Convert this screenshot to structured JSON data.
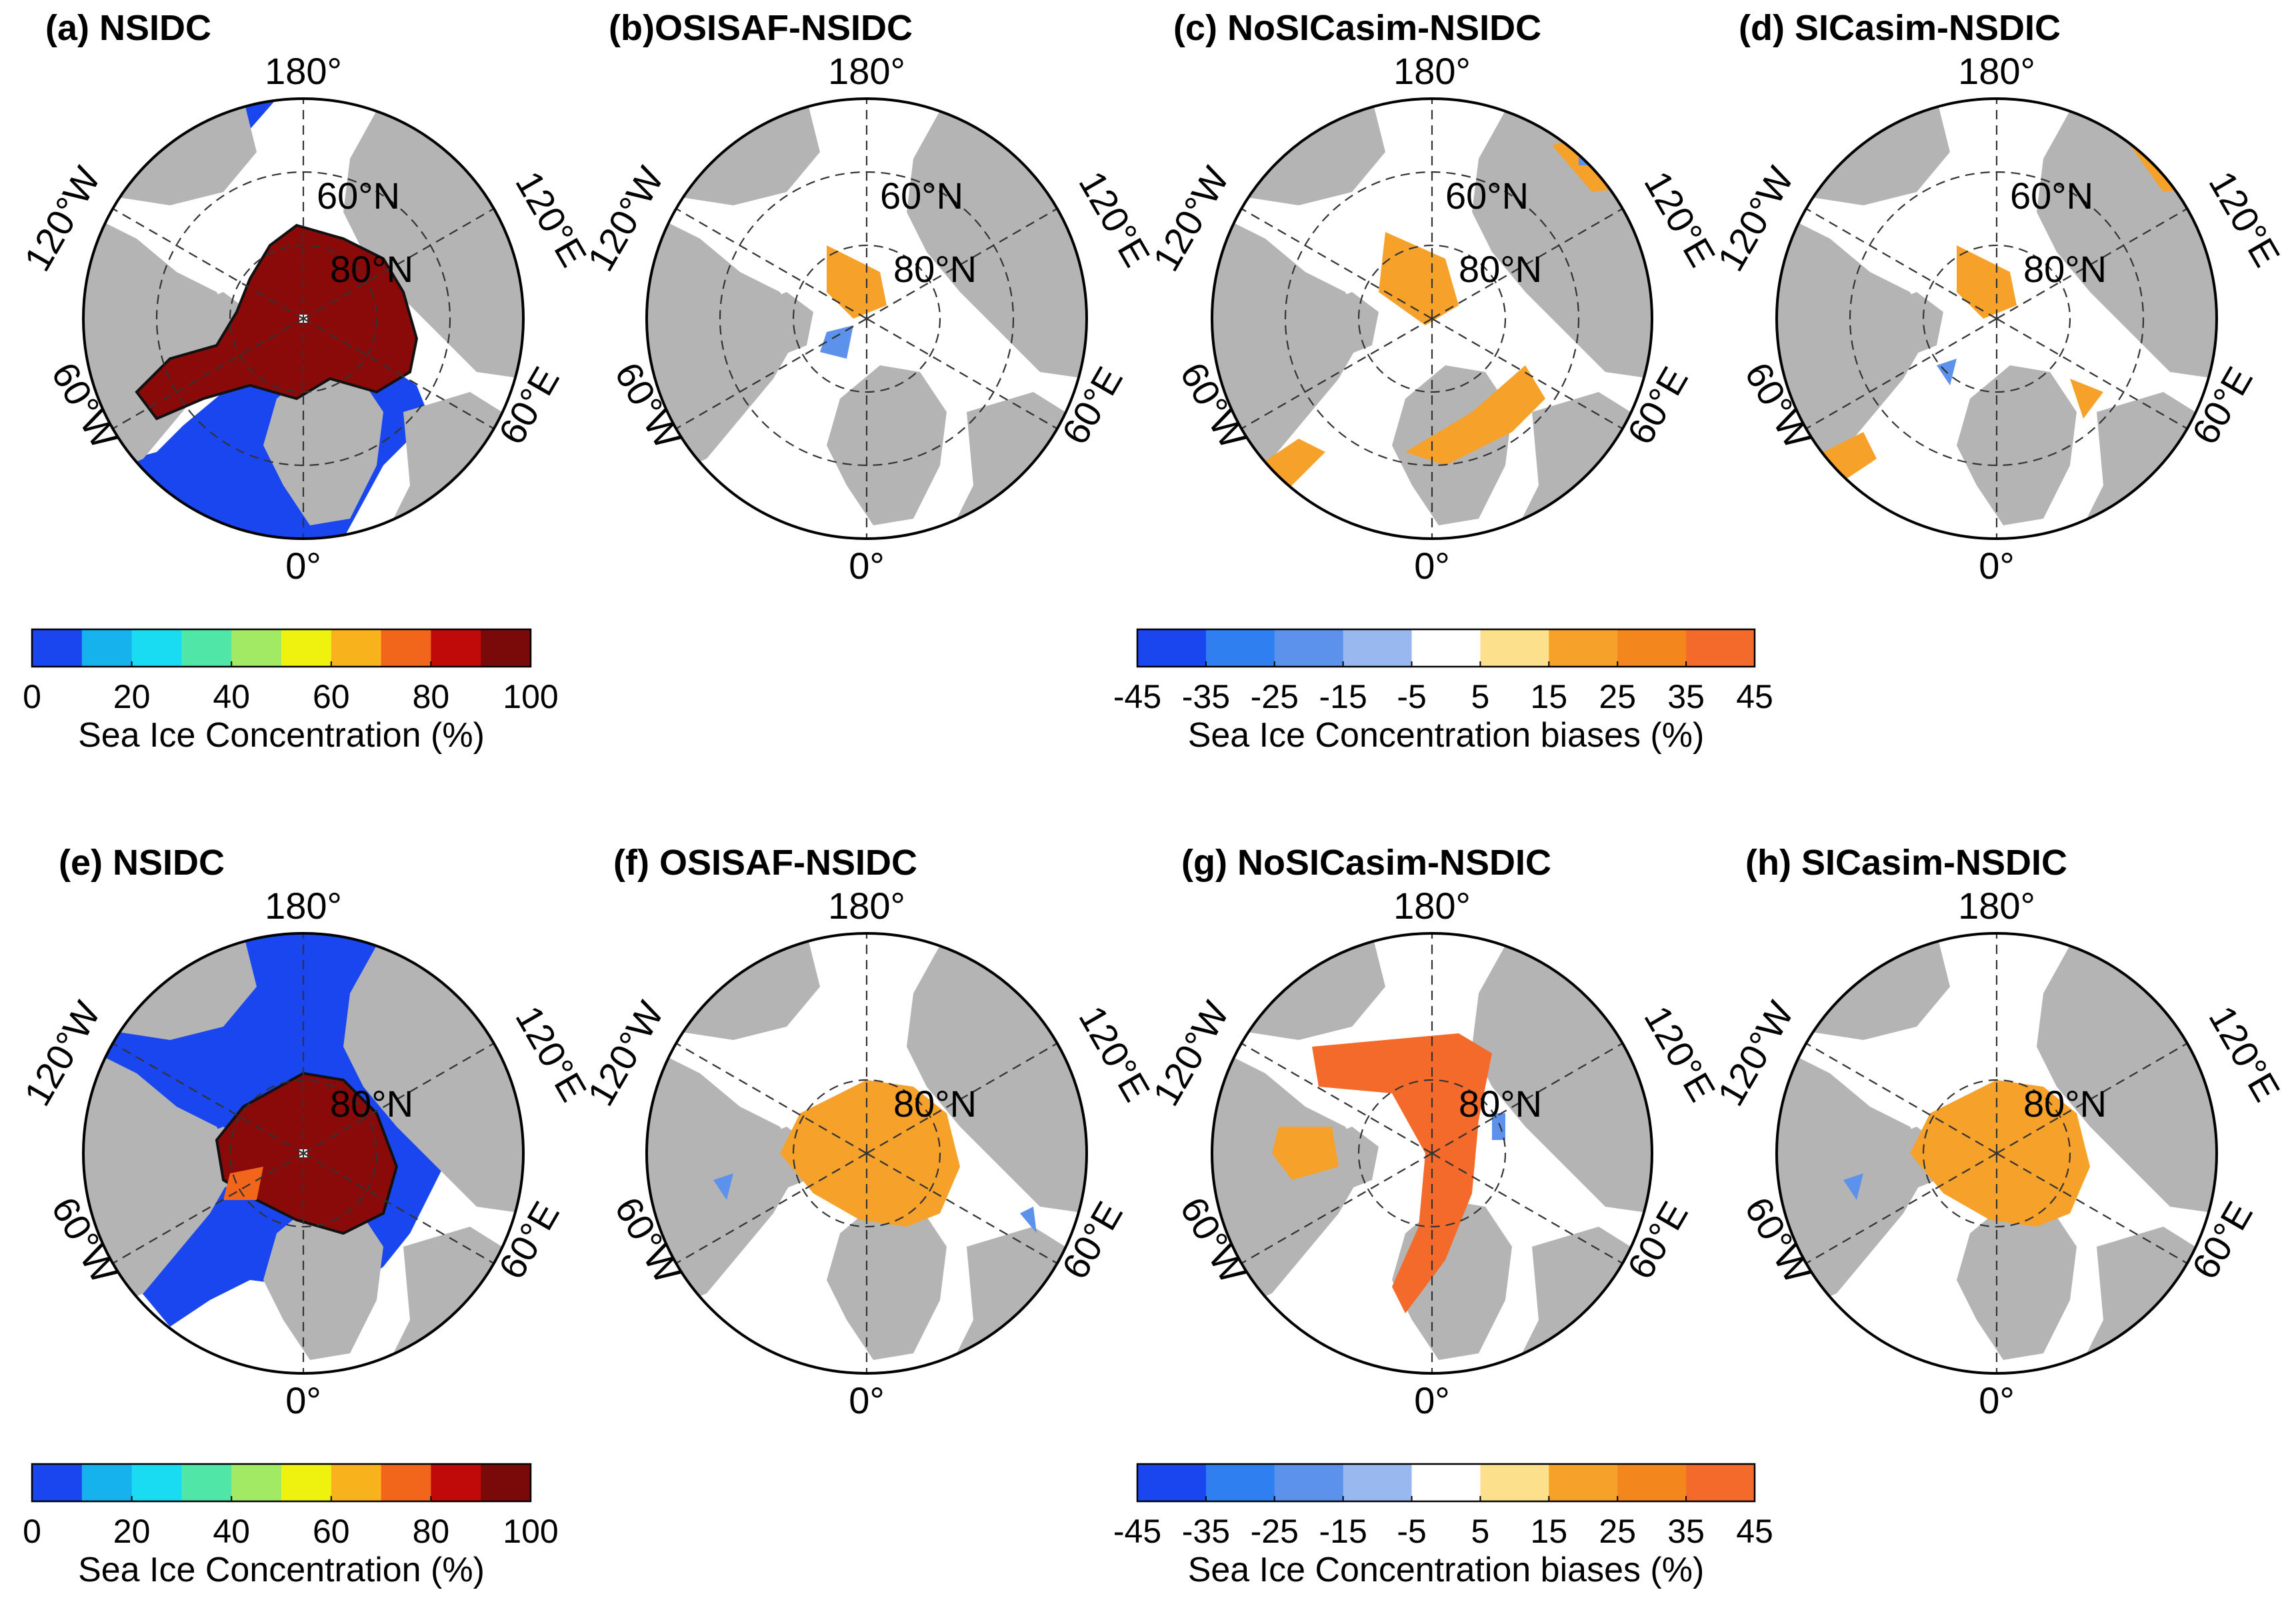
{
  "panels": [
    {
      "title": "(a) NSIDC",
      "kind": "abs",
      "lat_labels": [
        "60°N",
        "80°N"
      ]
    },
    {
      "title": "(b)OSISAF-NSIDC",
      "kind": "bias",
      "lat_labels": [
        "60°N",
        "80°N"
      ]
    },
    {
      "title": "(c) NoSICasim-NSIDC",
      "kind": "bias",
      "lat_labels": [
        "60°N",
        "80°N"
      ]
    },
    {
      "title": "(d) SICasim-NSDIC",
      "kind": "bias",
      "lat_labels": [
        "60°N",
        "80°N"
      ]
    },
    {
      "title": "(e) NSIDC",
      "kind": "abs",
      "lat_labels": [
        "80°N"
      ]
    },
    {
      "title": "(f) OSISAF-NSIDC",
      "kind": "bias",
      "lat_labels": [
        "80°N"
      ]
    },
    {
      "title": "(g) NoSICasim-NSDIC",
      "kind": "bias",
      "lat_labels": [
        "80°N"
      ]
    },
    {
      "title": "(h) SICasim-NSDIC",
      "kind": "bias",
      "lat_labels": [
        "80°N"
      ]
    }
  ],
  "longitude_labels": {
    "top": "180°",
    "bottom": "0°",
    "upper_left": "120°W",
    "upper_right": "120°E",
    "lower_left": "60°W",
    "lower_right": "60°E"
  },
  "colorbars": {
    "abs": {
      "title": "Sea Ice Concentration (%)",
      "ticks": [
        "0",
        "20",
        "40",
        "60",
        "80",
        "100"
      ],
      "colors": [
        "#1a46f0",
        "#15b2ee",
        "#19dcf2",
        "#4fe6a8",
        "#a2ea64",
        "#eef20e",
        "#f8b21c",
        "#f2661c",
        "#c00a0a",
        "#7a0a0a"
      ]
    },
    "bias": {
      "title": "Sea Ice Concentration biases (%)",
      "ticks": [
        "-45",
        "-35",
        "-25",
        "-15",
        "-5",
        "5",
        "15",
        "25",
        "35",
        "45"
      ],
      "colors": [
        "#1a46f0",
        "#2f7ff0",
        "#5c92ec",
        "#9ab8f0",
        "#ffffff",
        "#fde08c",
        "#f6a22a",
        "#f4861e",
        "#f46a2a"
      ]
    }
  },
  "colors": {
    "land": "#b4b4b4",
    "ocean_abs": "#1a46f0",
    "ice_abs": "#8a0a0a",
    "bias_pos": "#f6a22a",
    "bias_neg": "#5c92ec",
    "background": "#ffffff"
  }
}
